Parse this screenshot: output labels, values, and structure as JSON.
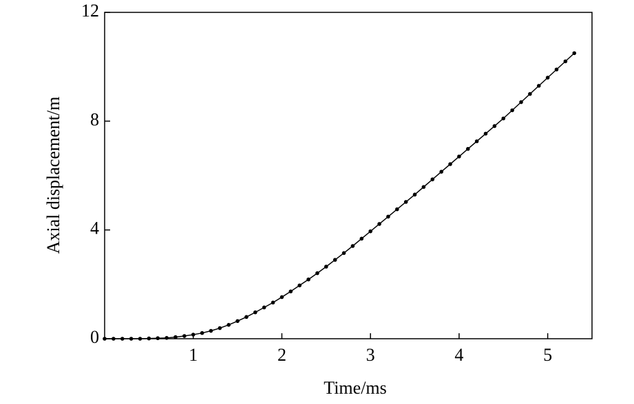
{
  "chart_data": {
    "type": "line",
    "x_label": "Time/ms",
    "y_label": "Axial displacement/m",
    "x": [
      0,
      0.1,
      0.2,
      0.3,
      0.4,
      0.5,
      0.6,
      0.7,
      0.8,
      0.9,
      1.0,
      1.1,
      1.2,
      1.3,
      1.4,
      1.5,
      1.6,
      1.7,
      1.8,
      1.9,
      2.0,
      2.1,
      2.2,
      2.3,
      2.4,
      2.5,
      2.6,
      2.7,
      2.8,
      2.9,
      3.0,
      3.1,
      3.2,
      3.3,
      3.4,
      3.5,
      3.6,
      3.7,
      3.8,
      3.9,
      4.0,
      4.1,
      4.2,
      4.3,
      4.4,
      4.5,
      4.6,
      4.7,
      4.8,
      4.9,
      5.0,
      5.1,
      5.2,
      5.3
    ],
    "series": [
      {
        "color": "#000000",
        "values": [
          0,
          0,
          0,
          0,
          0,
          0.01,
          0.02,
          0.03,
          0.06,
          0.1,
          0.15,
          0.21,
          0.29,
          0.39,
          0.51,
          0.65,
          0.8,
          0.97,
          1.15,
          1.33,
          1.53,
          1.74,
          1.96,
          2.18,
          2.41,
          2.65,
          2.9,
          3.15,
          3.41,
          3.68,
          3.95,
          4.22,
          4.49,
          4.76,
          5.03,
          5.3,
          5.58,
          5.86,
          6.14,
          6.42,
          6.7,
          6.98,
          7.26,
          7.54,
          7.82,
          8.1,
          8.4,
          8.7,
          9.0,
          9.3,
          9.6,
          9.9,
          10.2,
          10.5
        ]
      }
    ],
    "xlim": [
      0,
      5.5
    ],
    "xticks": [
      1,
      2,
      3,
      4,
      5
    ],
    "ylim": [
      0,
      12
    ],
    "yticks": [
      0,
      4,
      8,
      12
    ]
  }
}
